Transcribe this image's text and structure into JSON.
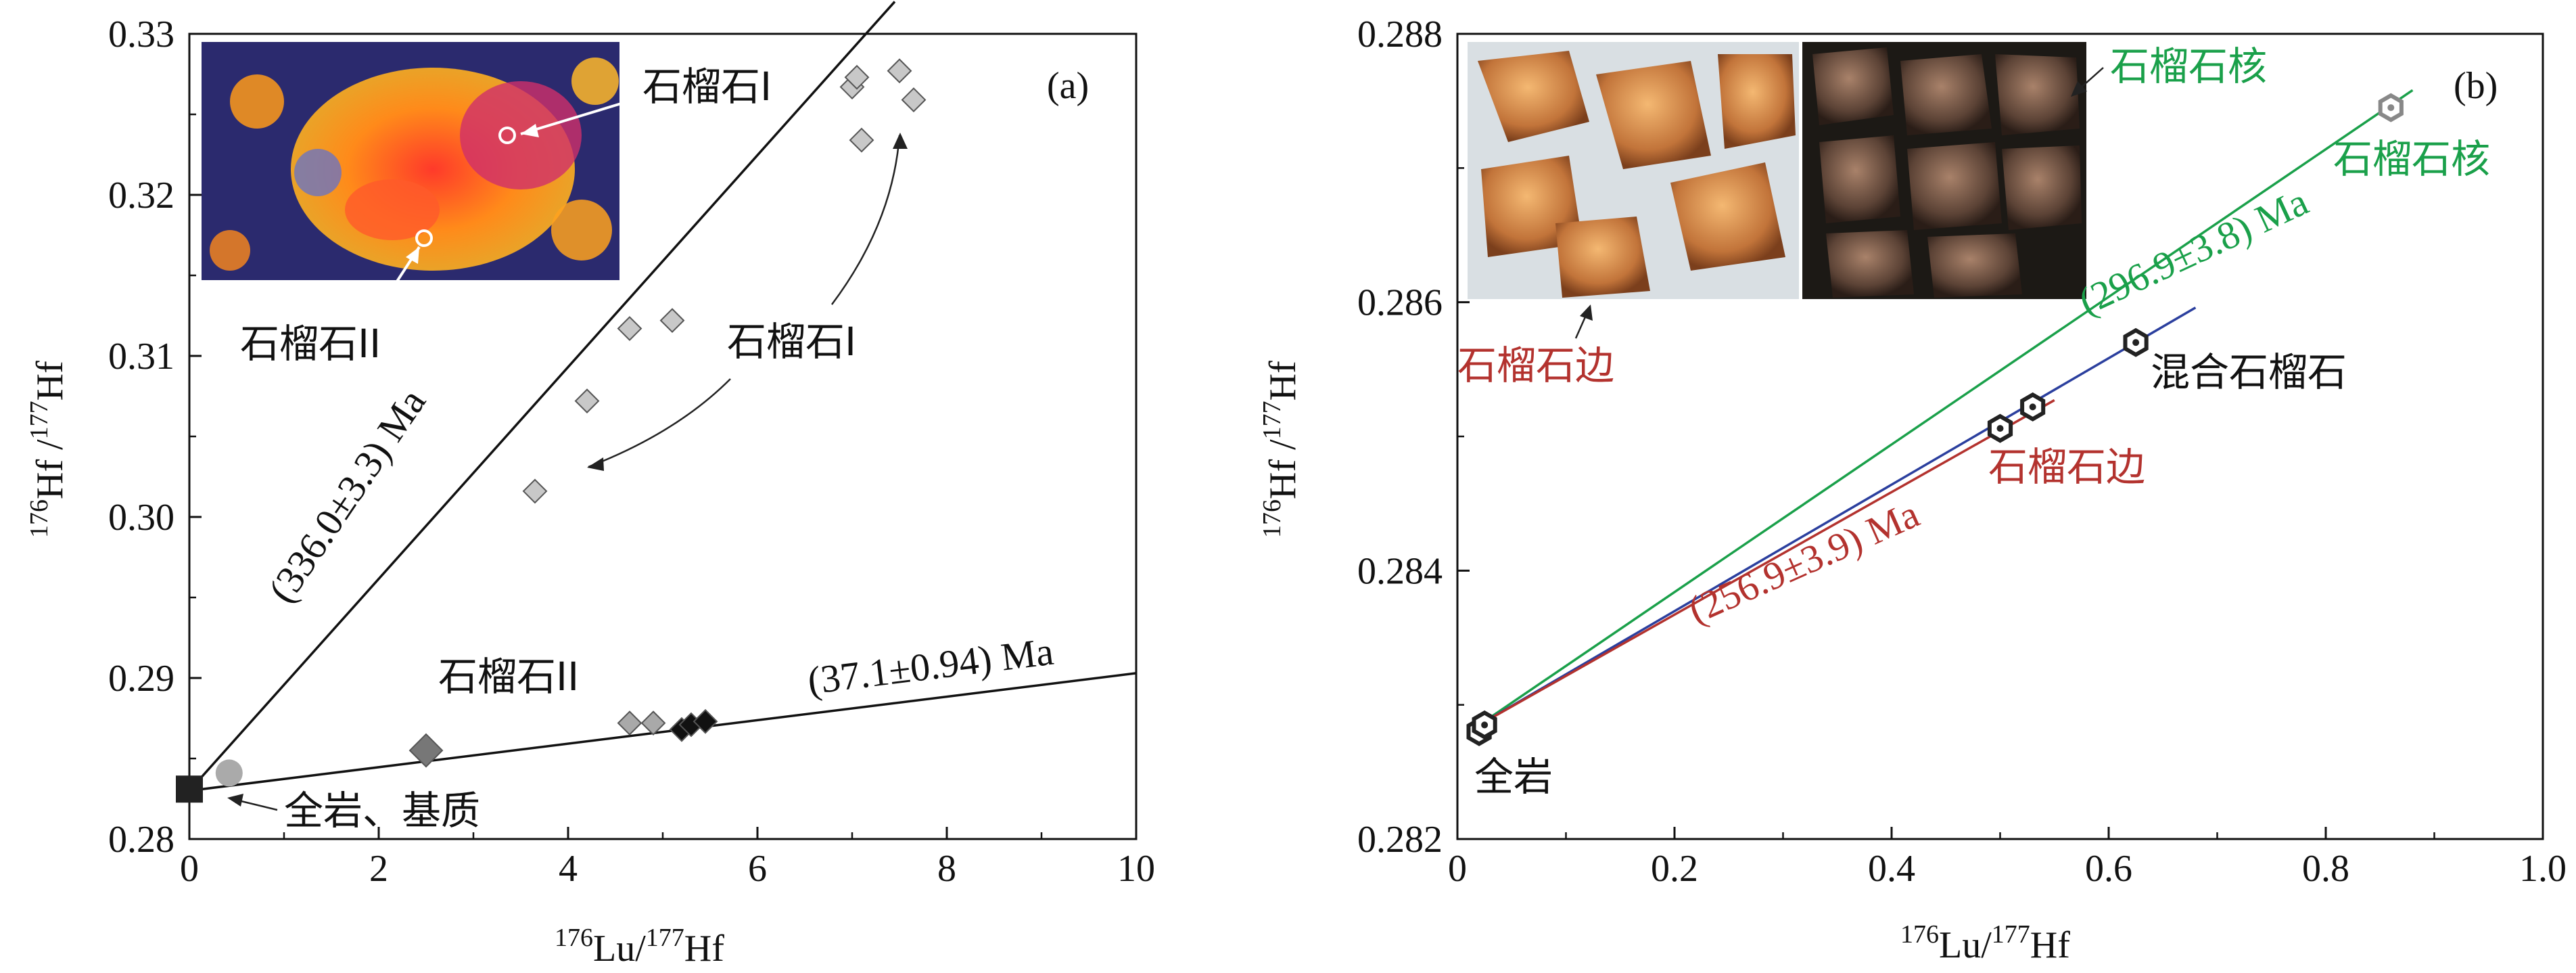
{
  "chart_data": [
    {
      "type": "scatter",
      "panel_label": "(a)",
      "xlabel": "176Lu/177Hf",
      "ylabel": "176Hf /177Hf",
      "xlim": [
        0,
        10
      ],
      "ylim": [
        0.28,
        0.33
      ],
      "x_ticks": [
        "0",
        "2",
        "4",
        "6",
        "8",
        "10"
      ],
      "y_ticks": [
        "0.28",
        "0.29",
        "0.30",
        "0.31",
        "0.32",
        "0.33"
      ],
      "grid": false,
      "legend": "none",
      "inset": "garnet zoning map (orange/red grains on blue matrix)",
      "series": [
        {
          "name": "石榴石I",
          "marker": "diamond",
          "color": "#c8c8c8",
          "points": [
            [
              3.65,
              0.3016
            ],
            [
              4.2,
              0.3072
            ],
            [
              4.65,
              0.3117
            ],
            [
              5.1,
              0.3122
            ],
            [
              7.0,
              0.3267
            ],
            [
              7.05,
              0.3273
            ],
            [
              7.1,
              0.3234
            ],
            [
              7.5,
              0.3277
            ],
            [
              7.65,
              0.3259
            ]
          ]
        },
        {
          "name": "石榴石II",
          "marker": "diamond",
          "color": "#777777",
          "points": [
            [
              2.5,
              0.2855
            ],
            [
              4.65,
              0.2872
            ],
            [
              4.9,
              0.2872
            ],
            [
              5.2,
              0.2868
            ],
            [
              5.3,
              0.2871
            ],
            [
              5.45,
              0.2873
            ]
          ]
        },
        {
          "name": "全岩、基质",
          "marker": "square+circle",
          "color": "#222222",
          "points": [
            [
              0.0,
              0.2831
            ],
            [
              0.42,
              0.2841
            ]
          ]
        }
      ],
      "isochrons": [
        {
          "label": "(336.0±3.3) Ma",
          "x": [
            0,
            7.45
          ],
          "y": [
            0.283,
            0.332
          ]
        },
        {
          "label": "(37.1±0.94) Ma",
          "x": [
            0,
            10
          ],
          "y": [
            0.283,
            0.2903
          ]
        }
      ],
      "annotations": [
        "石榴石I",
        "石榴石II",
        "石榴石I",
        "石榴石II",
        "全岩、基质"
      ]
    },
    {
      "type": "scatter",
      "panel_label": "(b)",
      "xlabel": "176Lu/177Hf",
      "ylabel": "176Hf /177Hf",
      "xlim": [
        0.0,
        1.0
      ],
      "ylim": [
        0.282,
        0.288
      ],
      "x_ticks": [
        "0",
        "0.2",
        "0.4",
        "0.6",
        "0.8",
        "1.0"
      ],
      "y_ticks": [
        "0.282",
        "0.284",
        "0.286",
        "0.288"
      ],
      "grid": false,
      "legend": "none",
      "inset": "photos of garnet grains (rim and core)",
      "series": [
        {
          "name": "全岩",
          "marker": "hexagon",
          "color": "#222222",
          "points": [
            [
              0.02,
              0.2828
            ],
            [
              0.025,
              0.28285
            ]
          ]
        },
        {
          "name": "石榴石边",
          "marker": "hexagon",
          "color": "#222222",
          "points": [
            [
              0.5,
              0.28506
            ],
            [
              0.53,
              0.28522
            ]
          ]
        },
        {
          "name": "混合石榴石",
          "marker": "hexagon",
          "color": "#222222",
          "points": [
            [
              0.625,
              0.2857
            ]
          ]
        },
        {
          "name": "石榴石核",
          "marker": "hexagon",
          "color": "#888888",
          "points": [
            [
              0.86,
              0.28745
            ]
          ]
        }
      ],
      "isochrons": [
        {
          "label": "(296.9±3.8) Ma",
          "color": "#1aa04a",
          "x": [
            0.02,
            0.88
          ],
          "y": [
            0.28285,
            0.28758
          ]
        },
        {
          "label": "",
          "color": "#2b3f9e",
          "x": [
            0.02,
            0.68
          ],
          "y": [
            0.28285,
            0.28596
          ]
        },
        {
          "label": "(256.9±3.9) Ma",
          "color": "#b3322e",
          "x": [
            0.02,
            0.55
          ],
          "y": [
            0.28285,
            0.28527
          ]
        }
      ],
      "annotations": [
        "石榴石核",
        "石榴石核",
        "石榴石边",
        "混合石榴石",
        "石榴石边",
        "全岩"
      ]
    }
  ],
  "colors": {
    "green": "#1aa04a",
    "red": "#b3322e",
    "blue": "#2b3f9e",
    "black": "#111111"
  }
}
